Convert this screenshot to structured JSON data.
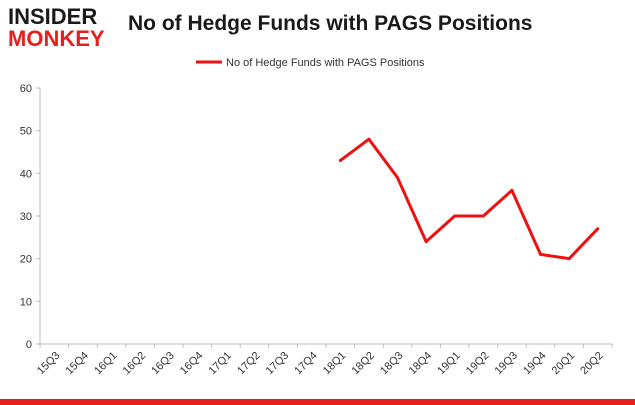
{
  "header": {
    "logo_line1": "INSIDER",
    "logo_line2": "MONKEY",
    "title": "No of Hedge Funds with PAGS Positions"
  },
  "colors": {
    "series": "#ee1111",
    "brand_red": "#e8201c",
    "grid": "#d9d9d9"
  },
  "chart_data": {
    "type": "line",
    "title": "No of Hedge Funds with PAGS Positions",
    "xlabel": "",
    "ylabel": "",
    "ylim": [
      0,
      60
    ],
    "yticks": [
      0,
      10,
      20,
      30,
      40,
      50,
      60
    ],
    "grid": false,
    "legend_position": "top-center",
    "categories": [
      "15Q3",
      "15Q4",
      "16Q1",
      "16Q2",
      "16Q3",
      "16Q4",
      "17Q1",
      "17Q2",
      "17Q3",
      "17Q4",
      "18Q1",
      "18Q2",
      "18Q3",
      "18Q4",
      "19Q1",
      "19Q2",
      "19Q3",
      "19Q4",
      "20Q1",
      "20Q2"
    ],
    "series": [
      {
        "name": "No of Hedge Funds with PAGS Positions",
        "values": [
          null,
          null,
          null,
          null,
          null,
          null,
          null,
          null,
          null,
          null,
          43,
          48,
          39,
          24,
          30,
          30,
          36,
          21,
          20,
          27
        ]
      }
    ]
  }
}
